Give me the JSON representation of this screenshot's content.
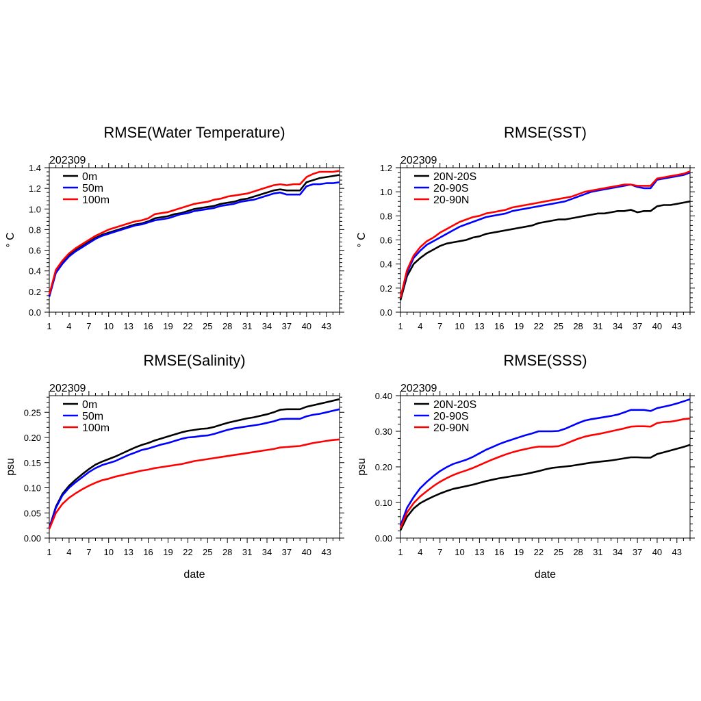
{
  "chart_data": [
    {
      "type": "line",
      "title": "RMSE(Water Temperature)",
      "subtitle": "202309",
      "xlabel": "",
      "ylabel": "° C",
      "xlim": [
        1,
        45
      ],
      "ylim": [
        0,
        1.4
      ],
      "x_ticks": [
        1,
        4,
        7,
        10,
        13,
        16,
        19,
        22,
        25,
        28,
        31,
        34,
        37,
        40,
        43
      ],
      "y_ticks": [
        "0.0",
        "0.2",
        "0.4",
        "0.6",
        "0.8",
        "1.0",
        "1.2",
        "1.4"
      ],
      "legend_position": "top-left",
      "series": [
        {
          "name": "0m",
          "color": "#000000",
          "values": [
            0.16,
            0.39,
            0.48,
            0.55,
            0.6,
            0.64,
            0.68,
            0.72,
            0.75,
            0.77,
            0.79,
            0.81,
            0.83,
            0.85,
            0.86,
            0.88,
            0.91,
            0.92,
            0.93,
            0.95,
            0.96,
            0.98,
            1.0,
            1.01,
            1.02,
            1.03,
            1.05,
            1.06,
            1.07,
            1.09,
            1.1,
            1.12,
            1.14,
            1.16,
            1.18,
            1.19,
            1.18,
            1.18,
            1.18,
            1.26,
            1.28,
            1.3,
            1.31,
            1.32,
            1.33
          ]
        },
        {
          "name": "50m",
          "color": "#0000ff",
          "values": [
            0.15,
            0.38,
            0.47,
            0.54,
            0.59,
            0.63,
            0.67,
            0.71,
            0.74,
            0.76,
            0.78,
            0.8,
            0.82,
            0.84,
            0.85,
            0.87,
            0.89,
            0.9,
            0.91,
            0.93,
            0.95,
            0.96,
            0.98,
            0.99,
            1.0,
            1.01,
            1.03,
            1.04,
            1.05,
            1.07,
            1.08,
            1.09,
            1.11,
            1.13,
            1.15,
            1.16,
            1.14,
            1.14,
            1.14,
            1.22,
            1.24,
            1.24,
            1.25,
            1.25,
            1.26
          ]
        },
        {
          "name": "100m",
          "color": "#ff0000",
          "values": [
            0.17,
            0.41,
            0.5,
            0.57,
            0.62,
            0.66,
            0.7,
            0.74,
            0.77,
            0.8,
            0.82,
            0.84,
            0.86,
            0.88,
            0.89,
            0.91,
            0.95,
            0.96,
            0.97,
            0.99,
            1.01,
            1.03,
            1.05,
            1.06,
            1.07,
            1.09,
            1.1,
            1.12,
            1.13,
            1.14,
            1.15,
            1.17,
            1.19,
            1.21,
            1.23,
            1.24,
            1.23,
            1.24,
            1.24,
            1.31,
            1.34,
            1.36,
            1.36,
            1.36,
            1.37
          ]
        }
      ]
    },
    {
      "type": "line",
      "title": "RMSE(SST)",
      "subtitle": "202309",
      "xlabel": "",
      "ylabel": "° C",
      "xlim": [
        1,
        45
      ],
      "ylim": [
        0,
        1.2
      ],
      "x_ticks": [
        1,
        4,
        7,
        10,
        13,
        16,
        19,
        22,
        25,
        28,
        31,
        34,
        37,
        40,
        43
      ],
      "y_ticks": [
        "0.0",
        "0.2",
        "0.4",
        "0.6",
        "0.8",
        "1.0",
        "1.2"
      ],
      "legend_position": "top-left",
      "series": [
        {
          "name": "20N-20S",
          "color": "#000000",
          "values": [
            0.1,
            0.3,
            0.4,
            0.45,
            0.49,
            0.52,
            0.55,
            0.57,
            0.58,
            0.59,
            0.6,
            0.62,
            0.63,
            0.65,
            0.66,
            0.67,
            0.68,
            0.69,
            0.7,
            0.71,
            0.72,
            0.74,
            0.75,
            0.76,
            0.77,
            0.77,
            0.78,
            0.79,
            0.8,
            0.81,
            0.82,
            0.82,
            0.83,
            0.84,
            0.84,
            0.85,
            0.83,
            0.84,
            0.84,
            0.88,
            0.89,
            0.89,
            0.9,
            0.91,
            0.92
          ]
        },
        {
          "name": "20-90S",
          "color": "#0000ff",
          "values": [
            0.12,
            0.33,
            0.45,
            0.51,
            0.56,
            0.59,
            0.62,
            0.65,
            0.68,
            0.71,
            0.73,
            0.75,
            0.77,
            0.79,
            0.8,
            0.81,
            0.82,
            0.84,
            0.85,
            0.86,
            0.87,
            0.88,
            0.89,
            0.9,
            0.91,
            0.92,
            0.94,
            0.96,
            0.98,
            1.0,
            1.01,
            1.02,
            1.03,
            1.04,
            1.05,
            1.06,
            1.04,
            1.03,
            1.03,
            1.1,
            1.11,
            1.12,
            1.13,
            1.14,
            1.16
          ]
        },
        {
          "name": "20-90N",
          "color": "#ff0000",
          "values": [
            0.12,
            0.35,
            0.47,
            0.54,
            0.59,
            0.62,
            0.66,
            0.69,
            0.72,
            0.75,
            0.77,
            0.79,
            0.8,
            0.82,
            0.83,
            0.84,
            0.85,
            0.87,
            0.88,
            0.89,
            0.9,
            0.91,
            0.92,
            0.93,
            0.94,
            0.95,
            0.96,
            0.98,
            1.0,
            1.01,
            1.02,
            1.03,
            1.04,
            1.05,
            1.06,
            1.06,
            1.05,
            1.05,
            1.05,
            1.11,
            1.12,
            1.13,
            1.14,
            1.15,
            1.17
          ]
        }
      ]
    },
    {
      "type": "line",
      "title": "RMSE(Salinity)",
      "subtitle": "202309",
      "xlabel": "date",
      "ylabel": "psu",
      "xlim": [
        1,
        45
      ],
      "ylim": [
        0,
        0.283
      ],
      "x_ticks": [
        1,
        4,
        7,
        10,
        13,
        16,
        19,
        22,
        25,
        28,
        31,
        34,
        37,
        40,
        43
      ],
      "y_ticks": [
        "0.00",
        "0.05",
        "0.10",
        "0.15",
        "0.20",
        "0.25"
      ],
      "legend_position": "top-left",
      "series": [
        {
          "name": "0m",
          "color": "#000000",
          "values": [
            0.02,
            0.062,
            0.088,
            0.104,
            0.116,
            0.127,
            0.137,
            0.146,
            0.152,
            0.157,
            0.162,
            0.168,
            0.174,
            0.18,
            0.185,
            0.189,
            0.194,
            0.198,
            0.202,
            0.206,
            0.21,
            0.213,
            0.215,
            0.217,
            0.218,
            0.221,
            0.225,
            0.229,
            0.232,
            0.235,
            0.238,
            0.24,
            0.243,
            0.246,
            0.25,
            0.255,
            0.256,
            0.256,
            0.256,
            0.261,
            0.264,
            0.267,
            0.27,
            0.273,
            0.276
          ]
        },
        {
          "name": "50m",
          "color": "#0000ff",
          "values": [
            0.02,
            0.06,
            0.085,
            0.1,
            0.111,
            0.121,
            0.131,
            0.139,
            0.145,
            0.149,
            0.153,
            0.159,
            0.165,
            0.17,
            0.175,
            0.178,
            0.182,
            0.186,
            0.189,
            0.193,
            0.197,
            0.2,
            0.201,
            0.203,
            0.204,
            0.207,
            0.211,
            0.215,
            0.218,
            0.22,
            0.222,
            0.224,
            0.226,
            0.229,
            0.232,
            0.236,
            0.237,
            0.237,
            0.237,
            0.242,
            0.245,
            0.247,
            0.25,
            0.253,
            0.256
          ]
        },
        {
          "name": "100m",
          "color": "#ff0000",
          "values": [
            0.018,
            0.05,
            0.068,
            0.08,
            0.089,
            0.097,
            0.104,
            0.11,
            0.115,
            0.118,
            0.122,
            0.125,
            0.128,
            0.131,
            0.134,
            0.136,
            0.139,
            0.141,
            0.143,
            0.145,
            0.147,
            0.15,
            0.153,
            0.155,
            0.157,
            0.159,
            0.161,
            0.163,
            0.165,
            0.167,
            0.169,
            0.171,
            0.173,
            0.175,
            0.177,
            0.18,
            0.181,
            0.182,
            0.183,
            0.186,
            0.189,
            0.191,
            0.193,
            0.195,
            0.196
          ]
        }
      ]
    },
    {
      "type": "line",
      "title": "RMSE(SSS)",
      "subtitle": "202309",
      "xlabel": "date",
      "ylabel": "psu",
      "xlim": [
        1,
        45
      ],
      "ylim": [
        0,
        0.4
      ],
      "x_ticks": [
        1,
        4,
        7,
        10,
        13,
        16,
        19,
        22,
        25,
        28,
        31,
        34,
        37,
        40,
        43
      ],
      "y_ticks": [
        "0.00",
        "0.10",
        "0.20",
        "0.30",
        "0.40"
      ],
      "legend_position": "top-left",
      "series": [
        {
          "name": "20N-20S",
          "color": "#000000",
          "values": [
            0.022,
            0.06,
            0.083,
            0.098,
            0.108,
            0.117,
            0.125,
            0.132,
            0.138,
            0.142,
            0.146,
            0.15,
            0.155,
            0.16,
            0.164,
            0.168,
            0.171,
            0.174,
            0.177,
            0.18,
            0.184,
            0.188,
            0.193,
            0.197,
            0.199,
            0.201,
            0.203,
            0.206,
            0.209,
            0.212,
            0.214,
            0.216,
            0.218,
            0.221,
            0.224,
            0.227,
            0.227,
            0.226,
            0.226,
            0.236,
            0.241,
            0.246,
            0.251,
            0.256,
            0.262
          ]
        },
        {
          "name": "20-90S",
          "color": "#0000ff",
          "values": [
            0.035,
            0.085,
            0.115,
            0.14,
            0.158,
            0.174,
            0.188,
            0.199,
            0.208,
            0.214,
            0.22,
            0.228,
            0.238,
            0.248,
            0.256,
            0.264,
            0.271,
            0.277,
            0.283,
            0.289,
            0.294,
            0.3,
            0.3,
            0.3,
            0.301,
            0.307,
            0.315,
            0.323,
            0.33,
            0.334,
            0.337,
            0.34,
            0.343,
            0.347,
            0.353,
            0.36,
            0.36,
            0.36,
            0.357,
            0.365,
            0.369,
            0.373,
            0.378,
            0.384,
            0.39
          ]
        },
        {
          "name": "20-90N",
          "color": "#ff0000",
          "values": [
            0.028,
            0.072,
            0.098,
            0.117,
            0.132,
            0.146,
            0.158,
            0.168,
            0.177,
            0.184,
            0.19,
            0.197,
            0.205,
            0.213,
            0.221,
            0.228,
            0.235,
            0.241,
            0.246,
            0.25,
            0.254,
            0.257,
            0.257,
            0.257,
            0.258,
            0.264,
            0.272,
            0.279,
            0.285,
            0.289,
            0.292,
            0.296,
            0.3,
            0.304,
            0.308,
            0.313,
            0.314,
            0.314,
            0.313,
            0.323,
            0.326,
            0.327,
            0.33,
            0.334,
            0.336
          ]
        }
      ]
    }
  ]
}
